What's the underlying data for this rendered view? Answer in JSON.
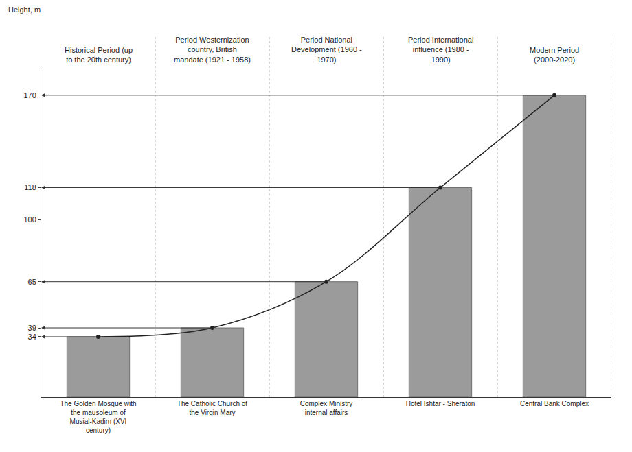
{
  "chart_data": {
    "type": "bar",
    "y_label": "Height, m",
    "periods": [
      "Historical Period (up to the 20th century)",
      "Period Westernization country, British mandate (1921 - 1958)",
      "Period National Development (1960 - 1970)",
      "Period International influence (1980 - 1990)",
      "Modern Period (2000-2020)"
    ],
    "categories": [
      "The Golden Mosque with the mausoleum of Musial-Kadim (XVI century)",
      "The Catholic Church of the Virgin Mary",
      "Complex Ministry internal affairs",
      "Hotel Ishtar - Sheraton",
      "Central Bank Complex"
    ],
    "series": [
      {
        "type": "bar",
        "color": "#8a8a8a",
        "values": [
          34,
          39,
          65,
          118,
          170
        ]
      },
      {
        "type": "line",
        "color": "#222222",
        "marker": "circle",
        "line_style": "solid",
        "values": [
          34,
          39,
          65,
          118,
          170
        ]
      }
    ],
    "ylim": [
      0,
      185
    ],
    "yticks": [
      34,
      39,
      65,
      100,
      118,
      170
    ],
    "grid": false
  }
}
